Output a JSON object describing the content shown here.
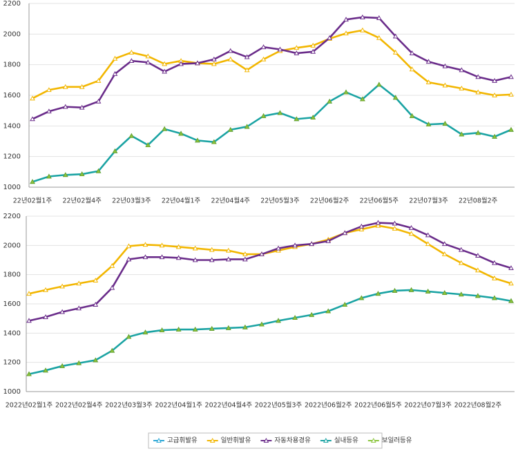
{
  "chart_data": [
    {
      "type": "line",
      "categories": [
        "22년02월1주",
        null,
        null,
        "22년02월4주",
        null,
        null,
        "22년03월3주",
        null,
        null,
        "22년04월1주",
        null,
        null,
        "22년04월4주",
        null,
        null,
        "22년05월3주",
        null,
        null,
        "22년06월2주",
        null,
        null,
        "22년06월5주",
        null,
        null,
        "22년07월3주",
        null,
        null,
        "22년08월2주",
        null,
        null
      ],
      "ylim": [
        1000,
        2200
      ],
      "yticks": [
        1000,
        1200,
        1400,
        1600,
        1800,
        2000,
        2200
      ],
      "grid": true,
      "series": [
        {
          "name": "일반휘발유",
          "color": "#f2b600",
          "values": [
            1580,
            1635,
            1655,
            1655,
            1695,
            1840,
            1880,
            1855,
            1805,
            1825,
            1810,
            1805,
            1835,
            1765,
            1835,
            1890,
            1910,
            1925,
            1970,
            2005,
            2025,
            1975,
            1880,
            1770,
            1685,
            1665,
            1645,
            1620,
            1600,
            1605
          ]
        },
        {
          "name": "자동차용경유",
          "color": "#6a2c8a",
          "values": [
            1445,
            1495,
            1525,
            1520,
            1560,
            1740,
            1825,
            1815,
            1755,
            1805,
            1810,
            1835,
            1890,
            1850,
            1915,
            1900,
            1875,
            1885,
            1975,
            2095,
            2110,
            2105,
            1985,
            1875,
            1820,
            1790,
            1765,
            1720,
            1695,
            1720
          ]
        },
        {
          "name": "실내등유",
          "color": "#1aa3a3",
          "values": [
            1035,
            1070,
            1080,
            1085,
            1105,
            1235,
            1335,
            1275,
            1380,
            1350,
            1305,
            1295,
            1375,
            1395,
            1465,
            1485,
            1445,
            1455,
            1560,
            1620,
            1575,
            1670,
            1585,
            1465,
            1410,
            1415,
            1345,
            1355,
            1330,
            1375
          ]
        },
        {
          "name": "보일러등유",
          "color": "#8cc63f",
          "values": [
            1035,
            1070,
            1080,
            1085,
            1105,
            1235,
            1335,
            1275,
            1380,
            1350,
            1305,
            1295,
            1375,
            1395,
            1465,
            1485,
            1445,
            1455,
            1560,
            1620,
            1575,
            1670,
            1585,
            1465,
            1410,
            1415,
            1345,
            1355,
            1330,
            1375
          ]
        }
      ]
    },
    {
      "type": "line",
      "categories": [
        "2022년02월1주",
        null,
        null,
        "2022년02월4주",
        null,
        null,
        "2022년03월3주",
        null,
        null,
        "2022년04월1주",
        null,
        null,
        "2022년04월4주",
        null,
        null,
        "2022년05월3주",
        null,
        null,
        "2022년06월2주",
        null,
        null,
        "2022년06월5주",
        null,
        null,
        "2022년07월3주",
        null,
        null,
        "2022년08월2주",
        null,
        null
      ],
      "ylim": [
        1000,
        2200
      ],
      "yticks": [
        1000,
        1200,
        1400,
        1600,
        1800,
        2000,
        2200
      ],
      "grid": true,
      "series": [
        {
          "name": "일반휘발유",
          "color": "#f2b600",
          "values": [
            1670,
            1695,
            1720,
            1740,
            1760,
            1860,
            1995,
            2005,
            2000,
            1990,
            1980,
            1970,
            1965,
            1940,
            1940,
            1965,
            1990,
            2010,
            2040,
            2085,
            2110,
            2135,
            2115,
            2080,
            2010,
            1940,
            1880,
            1830,
            1775,
            1740
          ]
        },
        {
          "name": "자동차용경유",
          "color": "#6a2c8a",
          "values": [
            1485,
            1510,
            1545,
            1570,
            1595,
            1710,
            1905,
            1920,
            1920,
            1915,
            1900,
            1900,
            1905,
            1905,
            1940,
            1980,
            2000,
            2010,
            2030,
            2085,
            2130,
            2155,
            2150,
            2120,
            2070,
            2010,
            1970,
            1930,
            1880,
            1845
          ]
        },
        {
          "name": "실내등유",
          "color": "#1aa3a3",
          "values": [
            1120,
            1145,
            1175,
            1195,
            1215,
            1280,
            1375,
            1405,
            1420,
            1425,
            1425,
            1430,
            1435,
            1440,
            1460,
            1485,
            1505,
            1525,
            1550,
            1595,
            1640,
            1670,
            1690,
            1695,
            1685,
            1675,
            1665,
            1655,
            1640,
            1620
          ]
        },
        {
          "name": "보일러등유",
          "color": "#8cc63f",
          "values": [
            1120,
            1145,
            1175,
            1195,
            1215,
            1280,
            1375,
            1405,
            1420,
            1425,
            1425,
            1430,
            1435,
            1440,
            1460,
            1485,
            1505,
            1525,
            1550,
            1595,
            1640,
            1670,
            1690,
            1695,
            1685,
            1675,
            1665,
            1655,
            1640,
            1620
          ]
        }
      ]
    }
  ],
  "legend": [
    {
      "name": "고급휘발유",
      "color": "#2aa7d6"
    },
    {
      "name": "일반휘발유",
      "color": "#f2b600"
    },
    {
      "name": "자동차용경유",
      "color": "#6a2c8a"
    },
    {
      "name": "실내등유",
      "color": "#1aa3a3"
    },
    {
      "name": "보일러등유",
      "color": "#8cc63f"
    }
  ]
}
